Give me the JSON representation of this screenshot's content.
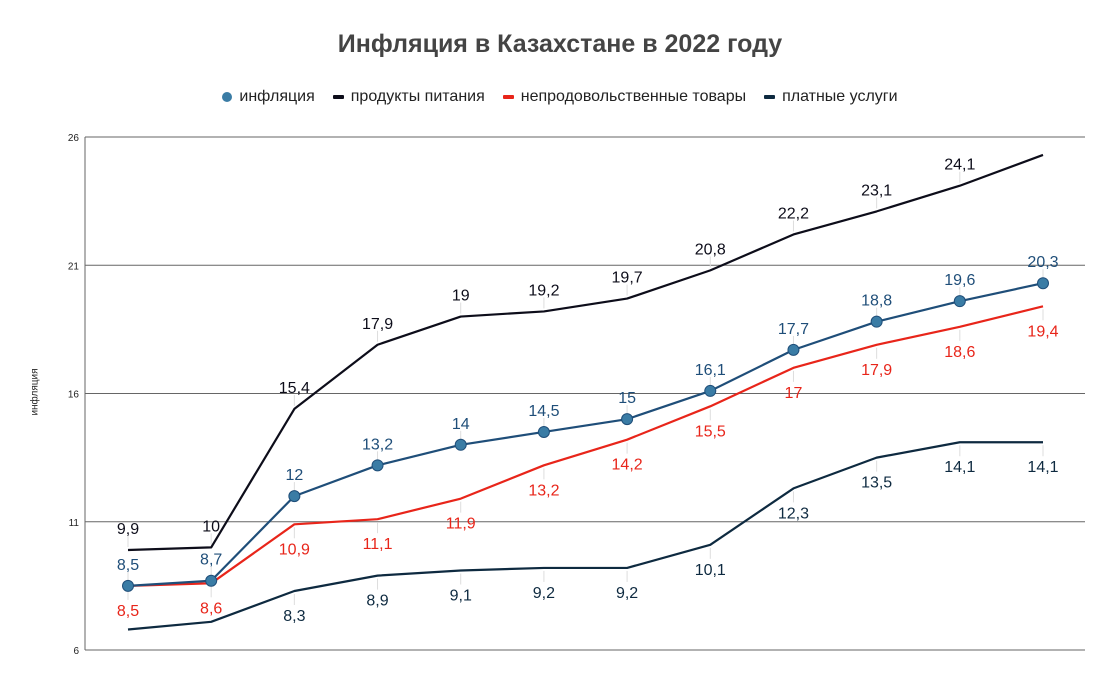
{
  "chart_data": {
    "type": "line",
    "title": "Инфляция в Казахстане в 2022 году",
    "xlabel": "",
    "ylabel": "инфляция",
    "ylim": [
      6,
      26
    ],
    "yticks": [
      6,
      11,
      16,
      21,
      26
    ],
    "grid": true,
    "legend_position": "top",
    "x": [
      1,
      2,
      3,
      4,
      5,
      6,
      7,
      8,
      9,
      10,
      11,
      12
    ],
    "series": [
      {
        "name": "инфляция",
        "color": "#1f4e79",
        "marker_color": "#3a7ca5",
        "marker": "circle",
        "values": [
          8.5,
          8.7,
          12,
          13.2,
          14,
          14.5,
          15,
          16.1,
          17.7,
          18.8,
          19.6,
          20.3
        ],
        "labels": [
          "8,5",
          "8,7",
          "12",
          "13,2",
          "14",
          "14,5",
          "15",
          "16,1",
          "17,7",
          "18,8",
          "19,6",
          "20,3"
        ],
        "label_position": "above"
      },
      {
        "name": "продукты питания",
        "color": "#0d0d1a",
        "marker": "none",
        "values": [
          9.9,
          10,
          15.4,
          17.9,
          19,
          19.2,
          19.7,
          20.8,
          22.2,
          23.1,
          24.1,
          25.3
        ],
        "labels": [
          "9,9",
          "10",
          "15,4",
          "17,9",
          "19",
          "19,2",
          "19,7",
          "20,8",
          "22,2",
          "23,1",
          "24,1",
          ""
        ],
        "label_position": "above"
      },
      {
        "name": "непродовольственные товары",
        "color": "#e8251a",
        "marker": "none",
        "values": [
          8.5,
          8.6,
          10.9,
          11.1,
          11.9,
          13.2,
          14.2,
          15.5,
          17,
          17.9,
          18.6,
          19.4
        ],
        "labels": [
          "8,5",
          "8,6",
          "10,9",
          "11,1",
          "11,9",
          "13,2",
          "14,2",
          "15,5",
          "17",
          "17,9",
          "18,6",
          "19,4"
        ],
        "label_position": "below"
      },
      {
        "name": "платные услуги",
        "color": "#0e2a40",
        "marker": "none",
        "values": [
          6.8,
          7.1,
          8.3,
          8.9,
          9.1,
          9.2,
          9.2,
          10.1,
          12.3,
          13.5,
          14.1,
          14.1
        ],
        "labels": [
          "",
          "",
          "8,3",
          "8,9",
          "9,1",
          "9,2",
          "9,2",
          "10,1",
          "12,3",
          "13,5",
          "14,1",
          "14,1"
        ],
        "label_position": "below"
      }
    ]
  },
  "legend": [
    {
      "label": "инфляция",
      "color": "#3a7ca5",
      "shape": "dot"
    },
    {
      "label": "продукты питания",
      "color": "#0d0d1a",
      "shape": "line"
    },
    {
      "label": "непродовольственные товары",
      "color": "#e8251a",
      "shape": "line"
    },
    {
      "label": "платные услуги",
      "color": "#0e2a40",
      "shape": "line"
    }
  ]
}
